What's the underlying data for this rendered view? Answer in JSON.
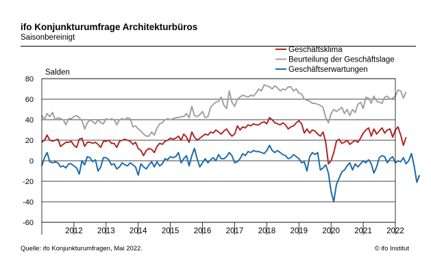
{
  "title": "ifo Konjunkturumfrage Architekturbüros",
  "subtitle": "Saisonbereinigt",
  "source": "Quelle: ifo Konjunkturumfragen, Mai 2022.",
  "credit": "© ifo Institut",
  "chart_data": {
    "type": "line",
    "ylabel": "Salden",
    "ylim": [
      -60,
      80
    ],
    "yticks": [
      -60,
      -40,
      -20,
      0,
      20,
      40,
      60,
      80
    ],
    "xlim": [
      2011.5,
      2022.5
    ],
    "xtick_labels": [
      "2012",
      "2013",
      "2014",
      "2015",
      "2016",
      "2017",
      "2018",
      "2019",
      "2020",
      "2021",
      "2022"
    ],
    "grid": true,
    "legend_position": "top-right",
    "x_start": 2011.5,
    "x_step": 0.0833333,
    "series": [
      {
        "name": "Geschäftsklima",
        "color": "#b22222",
        "values": [
          18,
          20,
          25,
          20,
          19,
          20,
          21,
          14,
          16,
          18,
          18,
          19,
          15,
          13,
          21,
          22,
          14,
          18,
          18,
          17,
          18,
          16,
          13,
          19,
          19,
          20,
          17,
          17,
          13,
          19,
          20,
          21,
          20,
          19,
          16,
          18,
          12,
          10,
          5,
          10,
          12,
          11,
          8,
          14,
          17,
          16,
          19,
          20,
          22,
          21,
          22,
          24,
          20,
          26,
          23,
          18,
          28,
          23,
          20,
          22,
          24,
          26,
          25,
          28,
          27,
          30,
          28,
          26,
          29,
          31,
          27,
          24,
          26,
          34,
          30,
          33,
          32,
          35,
          34,
          36,
          35,
          35,
          37,
          38,
          36,
          42,
          40,
          37,
          36,
          35,
          37,
          35,
          31,
          33,
          34,
          37,
          39,
          36,
          27,
          31,
          27,
          30,
          29,
          26,
          24,
          28,
          18,
          -3,
          0,
          8,
          19,
          21,
          17,
          18,
          20,
          16,
          18,
          20,
          18,
          22,
          27,
          30,
          32,
          24,
          31,
          26,
          29,
          32,
          27,
          30,
          31,
          23,
          30,
          33,
          25,
          15,
          23
        ]
      },
      {
        "name": "Beurteilung der Geschäftslage",
        "color": "#a0a0a0",
        "values": [
          44,
          40,
          46,
          43,
          47,
          40,
          42,
          41,
          40,
          35,
          41,
          41,
          43,
          44,
          42,
          39,
          31,
          37,
          40,
          38,
          36,
          40,
          37,
          36,
          41,
          40,
          41,
          40,
          35,
          40,
          41,
          40,
          42,
          41,
          33,
          34,
          31,
          29,
          26,
          24,
          24,
          28,
          25,
          32,
          36,
          37,
          40,
          41,
          40,
          41,
          42,
          42,
          43,
          43,
          46,
          42,
          53,
          44,
          43,
          45,
          48,
          42,
          43,
          52,
          55,
          57,
          58,
          62,
          54,
          51,
          68,
          57,
          53,
          60,
          62,
          64,
          63,
          62,
          64,
          63,
          66,
          70,
          68,
          74,
          73,
          72,
          70,
          73,
          71,
          68,
          70,
          69,
          72,
          72,
          68,
          70,
          66,
          65,
          60,
          59,
          58,
          56,
          56,
          55,
          54,
          52,
          42,
          37,
          46,
          50,
          48,
          50,
          52,
          46,
          50,
          44,
          50,
          47,
          55,
          57,
          51,
          62,
          61,
          56,
          63,
          58,
          57,
          56,
          62,
          63,
          60,
          61,
          63,
          69,
          68,
          61,
          67
        ]
      },
      {
        "name": "Geschäftserwartungen",
        "color": "#1a6aaa",
        "values": [
          -5,
          3,
          8,
          -1,
          -2,
          -1,
          -2,
          -6,
          -5,
          -7,
          -3,
          -3,
          -5,
          -7,
          -13,
          0,
          -4,
          4,
          3,
          -1,
          1,
          -10,
          -6,
          3,
          3,
          1,
          -4,
          -3,
          -8,
          -6,
          -2,
          -4,
          -5,
          -2,
          -4,
          -6,
          -14,
          -3,
          -6,
          -8,
          -4,
          -1,
          -6,
          -1,
          -5,
          -3,
          2,
          1,
          4,
          3,
          4,
          8,
          -2,
          2,
          5,
          -5,
          5,
          12,
          2,
          -6,
          -2,
          2,
          -2,
          1,
          3,
          0,
          6,
          2,
          2,
          4,
          8,
          5,
          -2,
          -1,
          2,
          7,
          5,
          9,
          8,
          10,
          9,
          9,
          8,
          7,
          10,
          15,
          10,
          8,
          10,
          8,
          6,
          5,
          2,
          3,
          6,
          4,
          2,
          -2,
          -1,
          -10,
          4,
          8,
          6,
          8,
          -9,
          -7,
          -4,
          -12,
          -30,
          -40,
          -23,
          -17,
          -11,
          -9,
          -5,
          -2,
          -9,
          -3,
          -6,
          -3,
          0,
          -2,
          1,
          -3,
          -12,
          -6,
          3,
          5,
          4,
          -2,
          2,
          4,
          -2,
          0,
          -1,
          3,
          -3,
          0,
          7,
          -5,
          -21,
          -14
        ]
      }
    ]
  }
}
